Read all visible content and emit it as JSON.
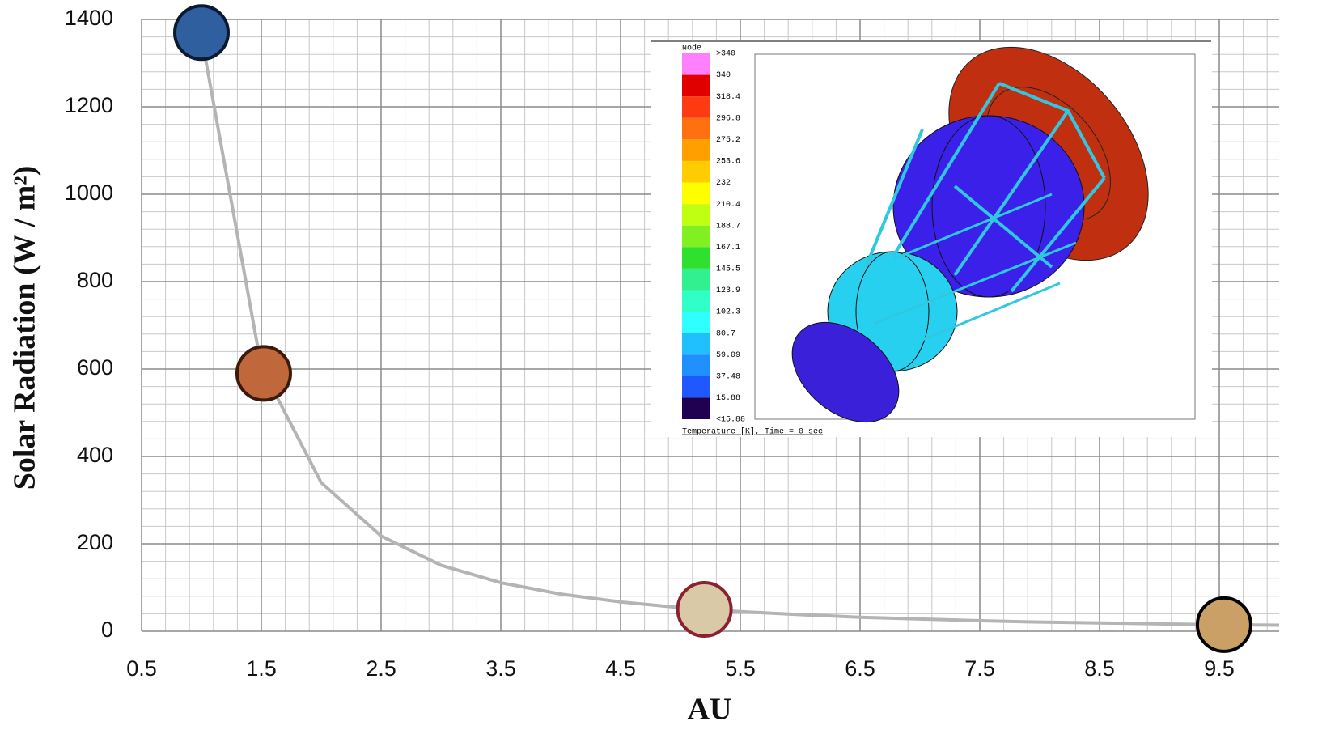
{
  "chart_data": {
    "type": "line",
    "x_label": "AU",
    "y_label": "Solar Radiation (W / m²)",
    "x": [
      1,
      1.5,
      2,
      2.5,
      3,
      3.5,
      4,
      4.5,
      5,
      5.5,
      6,
      6.5,
      7,
      7.5,
      8,
      8.5,
      9,
      9.5,
      10
    ],
    "series": [
      {
        "color": "#b4b4b4",
        "values": [
          1361,
          605,
          340,
          218,
          151,
          111,
          85,
          67,
          54,
          45,
          38,
          32,
          28,
          24,
          21,
          19,
          17,
          15,
          14
        ]
      }
    ],
    "markers": {
      "x": [
        1.0,
        1.52,
        5.2,
        9.54
      ],
      "values": [
        1370,
        590,
        50,
        15
      ],
      "colors": [
        "#2f5f9e",
        "#c0683c",
        "#d9c9a6",
        "#caa066"
      ],
      "borders": [
        "#0a1a30",
        "#3a1a0a",
        "#8a2030",
        "#000000"
      ]
    },
    "xlim": [
      0.5,
      10
    ],
    "ylim": [
      0,
      1400
    ],
    "xticks": [
      0.5,
      1.5,
      2.5,
      3.5,
      4.5,
      5.5,
      6.5,
      7.5,
      8.5,
      9.5
    ],
    "yticks": [
      0,
      200,
      400,
      600,
      800,
      1000,
      1200,
      1400
    ],
    "grid": true,
    "minor_grid_divisions": 5,
    "inset": {
      "legend_title": "Node",
      "legend_labels": [
        ">340",
        "340",
        "318.4",
        "296.8",
        "275.2",
        "253.6",
        "232",
        "210.4",
        "188.7",
        "167.1",
        "145.5",
        "123.9",
        "102.3",
        "80.7",
        "59.09",
        "37.48",
        "15.88",
        "<15.88"
      ],
      "legend_colors": [
        "#ff80ff",
        "#e00000",
        "#ff3a10",
        "#ff7010",
        "#ffa000",
        "#ffcc00",
        "#ffff00",
        "#c0ff10",
        "#80f020",
        "#30e030",
        "#30f090",
        "#30ffc8",
        "#30ffff",
        "#20c0ff",
        "#2090ff",
        "#2058ff",
        "#3018ff",
        "#200050"
      ],
      "caption": "Temperature [K], Time = 0 sec"
    }
  }
}
